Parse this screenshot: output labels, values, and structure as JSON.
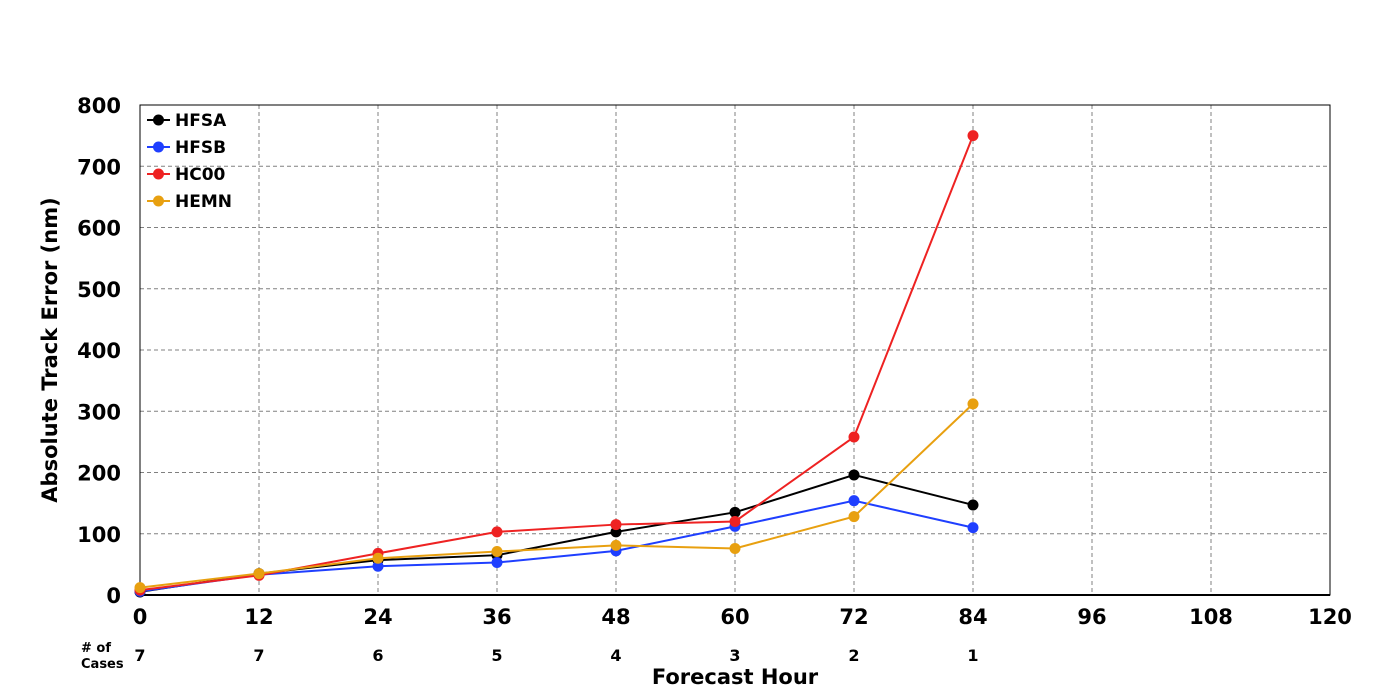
{
  "chart_data": {
    "type": "line",
    "xlabel": "Forecast Hour",
    "ylabel": "Absolute Track Error (nm)",
    "xlim": [
      0,
      120
    ],
    "ylim": [
      0,
      800
    ],
    "x_ticks": [
      0,
      12,
      24,
      36,
      48,
      60,
      72,
      84,
      96,
      108,
      120
    ],
    "y_ticks": [
      0,
      100,
      200,
      300,
      400,
      500,
      600,
      700,
      800
    ],
    "grid": true,
    "legend_position": "top-left",
    "x": [
      0,
      12,
      24,
      36,
      48,
      60,
      72,
      84
    ],
    "series": [
      {
        "name": "HFSA",
        "color": "#000000",
        "values": [
          5,
          35,
          57,
          65,
          103,
          135,
          196,
          147
        ]
      },
      {
        "name": "HFSB",
        "color": "#1f3fff",
        "values": [
          6,
          33,
          47,
          53,
          72,
          112,
          154,
          110
        ]
      },
      {
        "name": "HC00",
        "color": "#ee2222",
        "values": [
          8,
          32,
          68,
          103,
          115,
          120,
          258,
          750
        ]
      },
      {
        "name": "HEMN",
        "color": "#e8a010",
        "values": [
          12,
          35,
          60,
          71,
          81,
          76,
          128,
          312
        ]
      }
    ],
    "cases": {
      "label_line1": "# of",
      "label_line2": "Cases",
      "x": [
        0,
        12,
        24,
        36,
        48,
        60,
        72,
        84
      ],
      "counts": [
        "7",
        "7",
        "6",
        "5",
        "4",
        "3",
        "2",
        "1"
      ]
    }
  }
}
